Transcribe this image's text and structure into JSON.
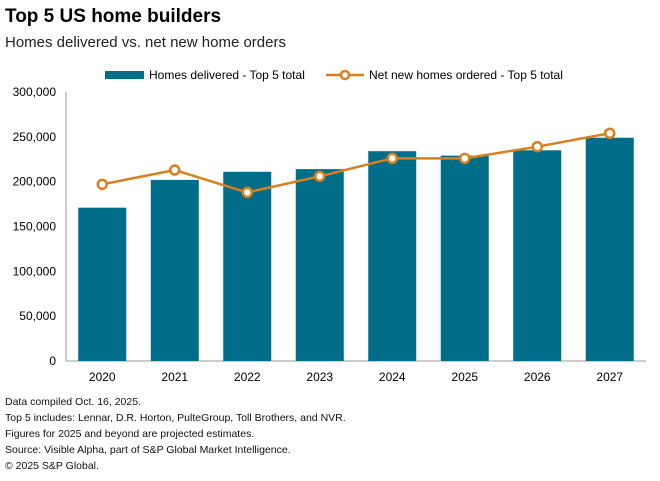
{
  "chart_data": {
    "type": "bar",
    "title": "Top 5 US home builders",
    "subtitle": "Homes delivered vs. net new home orders",
    "categories": [
      "2020",
      "2021",
      "2022",
      "2023",
      "2024",
      "2025",
      "2026",
      "2027"
    ],
    "series": [
      {
        "name": "Homes delivered - Top 5 total",
        "type": "bar",
        "color": "#006d89",
        "values": [
          171000,
          202000,
          211000,
          214000,
          234000,
          229000,
          235000,
          249000
        ]
      },
      {
        "name": "Net new homes ordered - Top 5 total",
        "type": "line",
        "color": "#d97f1e",
        "values": [
          197000,
          213000,
          188000,
          206000,
          226000,
          226000,
          239000,
          254000
        ]
      }
    ],
    "ylim": [
      0,
      300000
    ],
    "yticks": [
      "0",
      "50,000",
      "100,000",
      "150,000",
      "200,000",
      "250,000",
      "300,000"
    ],
    "ytick_values": [
      0,
      50000,
      100000,
      150000,
      200000,
      250000,
      300000
    ],
    "grid": false,
    "legend": "top"
  },
  "notes": [
    "Data compiled Oct. 16, 2025.",
    "Top 5 includes: Lennar, D.R. Horton, PulteGroup, Toll Brothers, and NVR.",
    "Figures for 2025 and beyond are projected estimates.",
    "Source: Visible Alpha, part of S&P Global Market Intelligence.",
    "© 2025 S&P Global."
  ]
}
